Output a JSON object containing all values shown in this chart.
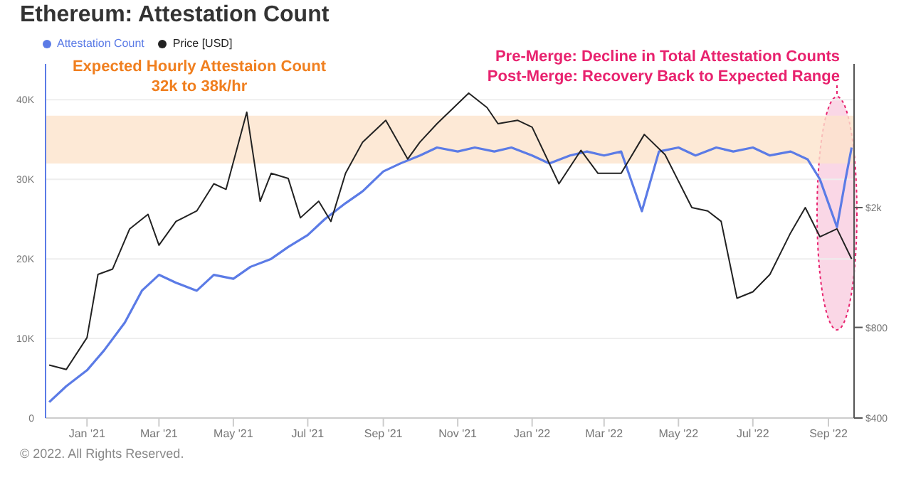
{
  "chart_data": {
    "type": "line",
    "title": "Ethereum: Attestation Count",
    "x": [
      "2020-12-01",
      "2020-12-15",
      "2021-01-01",
      "2021-01-15",
      "2021-02-01",
      "2021-02-15",
      "2021-03-01",
      "2021-03-15",
      "2021-04-01",
      "2021-04-15",
      "2021-05-01",
      "2021-05-15",
      "2021-06-01",
      "2021-06-15",
      "2021-07-01",
      "2021-07-15",
      "2021-08-01",
      "2021-08-15",
      "2021-09-01",
      "2021-09-15",
      "2021-10-01",
      "2021-10-15",
      "2021-11-01",
      "2021-11-15",
      "2021-12-01",
      "2021-12-15",
      "2022-01-01",
      "2022-01-15",
      "2022-02-01",
      "2022-02-15",
      "2022-03-01",
      "2022-03-15",
      "2022-04-01",
      "2022-04-15",
      "2022-05-01",
      "2022-05-15",
      "2022-06-01",
      "2022-06-15",
      "2022-07-01",
      "2022-07-15",
      "2022-08-01",
      "2022-08-15",
      "2022-08-25",
      "2022-09-01",
      "2022-09-08",
      "2022-09-15",
      "2022-09-20"
    ],
    "series": [
      {
        "name": "Attestation Count",
        "color": "#5b7be6",
        "values": [
          2000,
          4000,
          6000,
          8500,
          12000,
          16000,
          18000,
          17000,
          16000,
          18000,
          17500,
          19000,
          20000,
          21500,
          23000,
          25000,
          27000,
          28500,
          31000,
          32000,
          33000,
          34000,
          33500,
          34000,
          33500,
          34000,
          33000,
          32000,
          33000,
          33500,
          33000,
          33500,
          26000,
          33500,
          34000,
          33000,
          34000,
          33500,
          34000,
          33000,
          33500,
          32500,
          30000,
          27000,
          24000,
          30000,
          34000
        ]
      },
      {
        "name": "Price [USD]",
        "color": "#222222",
        "axis": "y2",
        "x": [
          "2020-12-01",
          "2020-12-15",
          "2021-01-01",
          "2021-01-10",
          "2021-01-22",
          "2021-02-05",
          "2021-02-20",
          "2021-03-01",
          "2021-03-15",
          "2021-04-01",
          "2021-04-15",
          "2021-04-25",
          "2021-05-12",
          "2021-05-23",
          "2021-06-01",
          "2021-06-15",
          "2021-06-25",
          "2021-07-10",
          "2021-07-20",
          "2021-08-01",
          "2021-08-15",
          "2021-09-03",
          "2021-09-21",
          "2021-10-01",
          "2021-10-15",
          "2021-11-10",
          "2021-11-25",
          "2021-12-04",
          "2021-12-20",
          "2022-01-01",
          "2022-01-23",
          "2022-02-10",
          "2022-02-24",
          "2022-03-15",
          "2022-04-03",
          "2022-04-20",
          "2022-05-12",
          "2022-05-25",
          "2022-06-05",
          "2022-06-18",
          "2022-07-01",
          "2022-07-15",
          "2022-08-01",
          "2022-08-13",
          "2022-08-25",
          "2022-09-08",
          "2022-09-20"
        ],
        "values": [
          600,
          580,
          740,
          1200,
          1250,
          1700,
          1900,
          1500,
          1800,
          1950,
          2400,
          2300,
          4150,
          2100,
          2600,
          2500,
          1850,
          2100,
          1800,
          2600,
          3300,
          3900,
          2900,
          3300,
          3800,
          4800,
          4300,
          3800,
          3900,
          3700,
          2400,
          3100,
          2600,
          2600,
          3500,
          3000,
          2000,
          1950,
          1800,
          1000,
          1050,
          1200,
          1650,
          2000,
          1600,
          1700,
          1350
        ]
      }
    ],
    "xlim": [
      "2020-11-28",
      "2022-09-22"
    ],
    "xticks": [
      {
        "value": "2021-01-01",
        "label": "Jan '21"
      },
      {
        "value": "2021-03-01",
        "label": "Mar '21"
      },
      {
        "value": "2021-05-01",
        "label": "May '21"
      },
      {
        "value": "2021-07-01",
        "label": "Jul '21"
      },
      {
        "value": "2021-09-01",
        "label": "Sep '21"
      },
      {
        "value": "2021-11-01",
        "label": "Nov '21"
      },
      {
        "value": "2022-01-01",
        "label": "Jan '22"
      },
      {
        "value": "2022-03-01",
        "label": "Mar '22"
      },
      {
        "value": "2022-05-01",
        "label": "May '22"
      },
      {
        "value": "2022-07-01",
        "label": "Jul '22"
      },
      {
        "value": "2022-09-01",
        "label": "Sep '22"
      }
    ],
    "ylim": [
      0,
      44500
    ],
    "yticks": [
      0,
      {
        "value": 10000,
        "label": "10K"
      },
      {
        "value": 20000,
        "label": "20K"
      },
      {
        "value": 30000,
        "label": "30K"
      },
      {
        "value": 40000,
        "label": "40K"
      }
    ],
    "y2lim": [
      400,
      6000
    ],
    "y2ticks": [
      {
        "value": 400,
        "label": "$400"
      },
      {
        "value": 800,
        "label": "$800"
      },
      {
        "value": 2000,
        "label": "$2k"
      }
    ],
    "log": "y2",
    "bands": [
      {
        "axis": "y",
        "from": 32000,
        "to": 38000,
        "color": "#fde3cc"
      }
    ],
    "annotations": [
      "Expected Hourly Attestaion Count",
      "32k to 38k/hr",
      "Pre-Merge: Decline in Total Attestation Counts",
      "Post-Merge: Recovery Back to Expected Range",
      "© 2022. All Rights Reserved."
    ],
    "grid": "y",
    "legend": "top left",
    "marker": "none",
    "line_style": "solid"
  }
}
